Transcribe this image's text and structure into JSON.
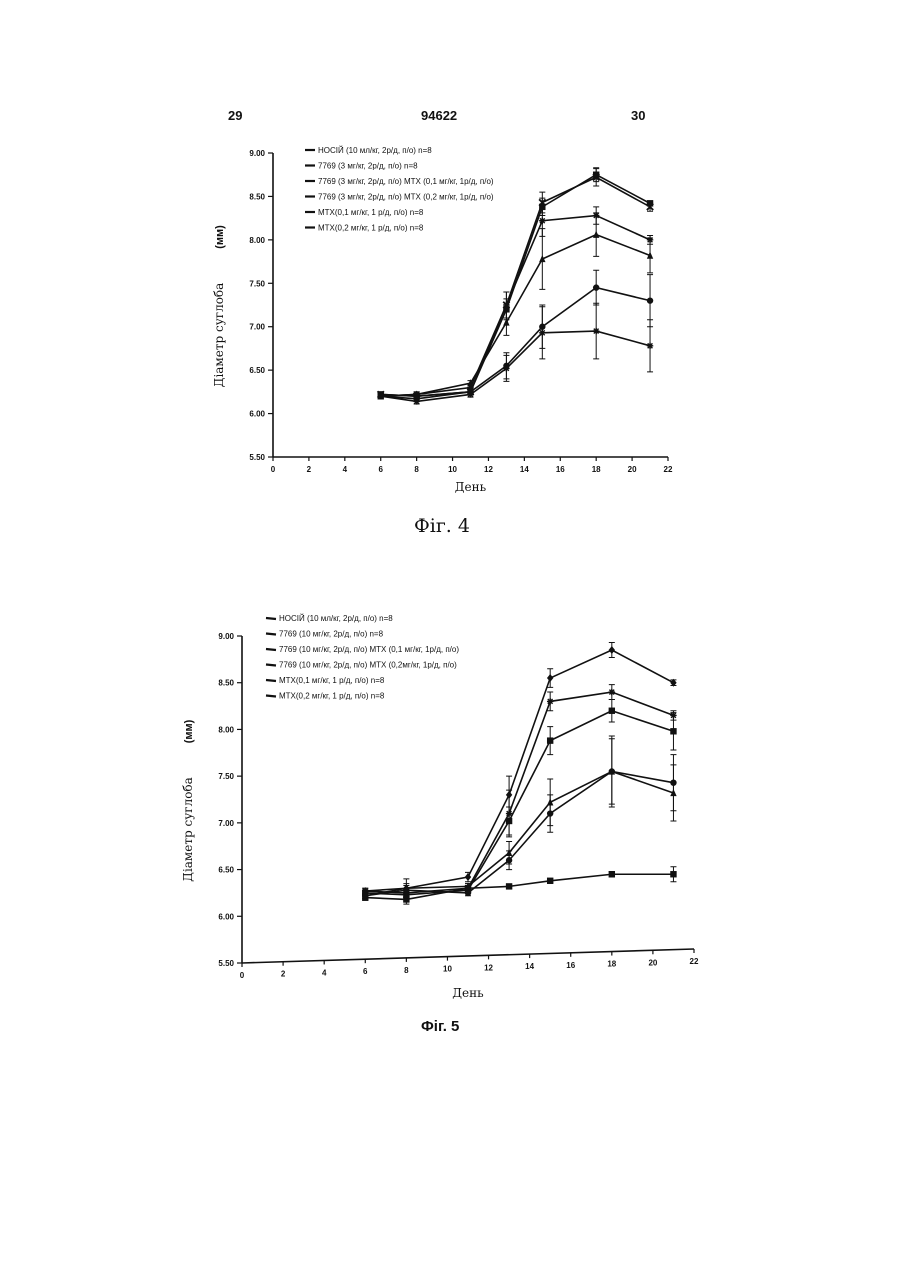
{
  "header": {
    "left_page": "29",
    "patent_number": "94622",
    "right_page": "30"
  },
  "figures": {
    "fig4_caption": "Фіг. 4",
    "fig5_caption": "Фіг. 5"
  },
  "chart_data": [
    {
      "type": "line",
      "xlabel": "День",
      "ylabel": "Діаметр суглоба",
      "yunit": "(мм)",
      "xlim": [
        0,
        22
      ],
      "ylim": [
        5.5,
        9.0
      ],
      "xticks": [
        "0",
        "2",
        "4",
        "6",
        "8",
        "10",
        "12",
        "14",
        "16",
        "18",
        "20",
        "22"
      ],
      "yticks": [
        "5.50",
        "6.00",
        "6.50",
        "7.00",
        "7.50",
        "8.00",
        "8.50",
        "9.00"
      ],
      "x": [
        6,
        8,
        11,
        13,
        15,
        18,
        21
      ],
      "legend_position": "top-left",
      "series": [
        {
          "name": "НОСІЙ (10 мл/кг, 2р/д, п/о)  n=8",
          "marker": "cross",
          "values": [
            6.22,
            6.2,
            6.25,
            7.25,
            8.43,
            8.72,
            8.38
          ],
          "err": [
            0.03,
            0.03,
            0.03,
            0.15,
            0.12,
            0.1,
            0.05
          ]
        },
        {
          "name": "7769 (3 мг/кг, 2р/д, п/о) n=8",
          "marker": "square",
          "values": [
            6.22,
            6.2,
            6.25,
            7.2,
            8.38,
            8.75,
            8.42
          ],
          "err": [
            0.03,
            0.03,
            0.03,
            0.12,
            0.1,
            0.08,
            0.03
          ]
        },
        {
          "name": "7769 (3 мг/кг, 2р/д, п/о) МТХ (0,1 мг/кг, 1р/д, п/о)",
          "marker": "star",
          "values": [
            6.2,
            6.22,
            6.3,
            7.25,
            8.22,
            8.28,
            8.0
          ],
          "err": [
            0.03,
            0.03,
            0.03,
            0.15,
            0.18,
            0.1,
            0.05
          ]
        },
        {
          "name": "7769 (3 мг/кг, 2р/д, п/о) МТХ (0,2 мг/кг, 1р/д, п/о)",
          "marker": "triangle",
          "values": [
            6.2,
            6.22,
            6.35,
            7.05,
            7.78,
            8.06,
            7.82
          ],
          "err": [
            0.03,
            0.03,
            0.03,
            0.15,
            0.35,
            0.25,
            0.2
          ]
        },
        {
          "name": "МТХ(0,1 мг/кг, 1 р/д, п/о) n=8",
          "marker": "circle",
          "values": [
            6.2,
            6.17,
            6.25,
            6.55,
            7.0,
            7.45,
            7.3
          ],
          "err": [
            0.03,
            0.03,
            0.03,
            0.15,
            0.25,
            0.2,
            0.3
          ]
        },
        {
          "name": "МТХ(0,2 мг/кг, 1 р/д, п/о) n=8",
          "marker": "star",
          "values": [
            6.2,
            6.14,
            6.22,
            6.52,
            6.93,
            6.95,
            6.78
          ],
          "err": [
            0.03,
            0.03,
            0.03,
            0.15,
            0.3,
            0.32,
            0.3
          ]
        }
      ]
    },
    {
      "type": "line",
      "xlabel": "День",
      "ylabel": "Діаметр суглоба",
      "yunit": "(мм)",
      "xlim": [
        0,
        22
      ],
      "ylim": [
        5.5,
        9.0
      ],
      "xticks": [
        "0",
        "2",
        "4",
        "6",
        "8",
        "10",
        "12",
        "14",
        "16",
        "18",
        "20",
        "22"
      ],
      "yticks": [
        "5.50",
        "6.00",
        "6.50",
        "7.00",
        "7.50",
        "8.00",
        "8.50",
        "9.00"
      ],
      "x": [
        6,
        8,
        11,
        13,
        15,
        18,
        21
      ],
      "legend_position": "top-left",
      "series": [
        {
          "name": "НОСІЙ (10 мл/кг, 2р/д, п/о)   n=8",
          "marker": "diamond",
          "values": [
            6.22,
            6.3,
            6.42,
            7.3,
            8.55,
            8.85,
            8.5
          ],
          "err": [
            0.03,
            0.1,
            0.05,
            0.2,
            0.1,
            0.08,
            0.03
          ]
        },
        {
          "name": "7769 (10 мг/кг, 2р/д, п/о) n=8",
          "marker": "square",
          "values": [
            6.2,
            6.18,
            6.3,
            6.32,
            6.38,
            6.45,
            6.45
          ],
          "err": [
            0.03,
            0.05,
            0.03,
            0.02,
            0.02,
            0.03,
            0.08
          ]
        },
        {
          "name": "7769 (10 мг/кг, 2р/д, п/о) МТХ (0,1 мг/кг, 1р/д, п/о)",
          "marker": "star",
          "values": [
            6.27,
            6.25,
            6.3,
            7.1,
            8.3,
            8.4,
            8.15
          ],
          "err": [
            0.03,
            0.05,
            0.05,
            0.25,
            0.1,
            0.08,
            0.05
          ]
        },
        {
          "name": "7769 (10 мг/кг, 2р/д, п/о) МТХ (0,2мг/кг, 1р/д, п/о)",
          "marker": "square",
          "values": [
            6.25,
            6.23,
            6.28,
            7.02,
            7.88,
            8.2,
            7.98
          ],
          "err": [
            0.03,
            0.05,
            0.03,
            0.15,
            0.15,
            0.12,
            0.2
          ]
        },
        {
          "name": "МТХ(0,1 мг/кг, 1 р/д, п/о) n=8",
          "marker": "triangle",
          "values": [
            6.27,
            6.3,
            6.32,
            6.68,
            7.22,
            7.55,
            7.32
          ],
          "err": [
            0.03,
            0.05,
            0.03,
            0.12,
            0.25,
            0.35,
            0.3
          ]
        },
        {
          "name": "МТХ(0,2 мг/кг, 1 р/д, п/о) n=8",
          "marker": "circle",
          "values": [
            6.22,
            6.28,
            6.25,
            6.6,
            7.1,
            7.55,
            7.43
          ],
          "err": [
            0.03,
            0.05,
            0.03,
            0.1,
            0.2,
            0.38,
            0.3
          ]
        }
      ]
    }
  ]
}
